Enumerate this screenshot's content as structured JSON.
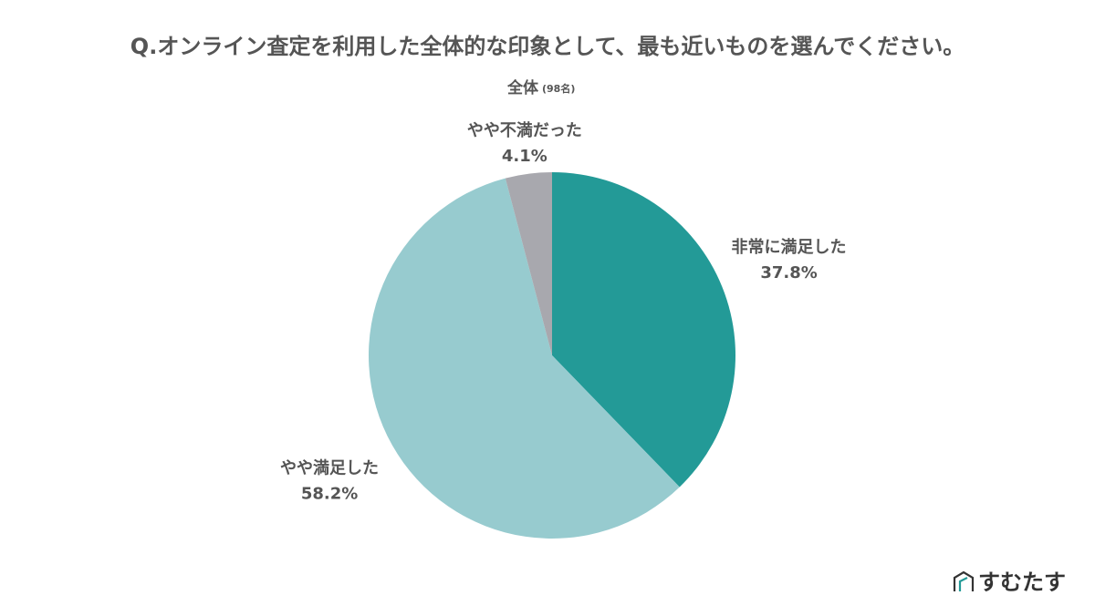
{
  "chart_data": {
    "type": "pie",
    "title": "Q.オンライン査定を利用した全体的な印象として、最も近いものを選んでください。",
    "subtitle": "全体",
    "subtitle_note": "(98名)",
    "categories": [
      "非常に満足した",
      "やや満足した",
      "やや不満だった"
    ],
    "values": [
      37.8,
      58.2,
      4.1
    ],
    "value_labels": [
      "37.8%",
      "58.2%",
      "4.1%"
    ],
    "colors": [
      "#239a97",
      "#97cbcf",
      "#a8a8ae"
    ]
  },
  "logo": "すむたす"
}
